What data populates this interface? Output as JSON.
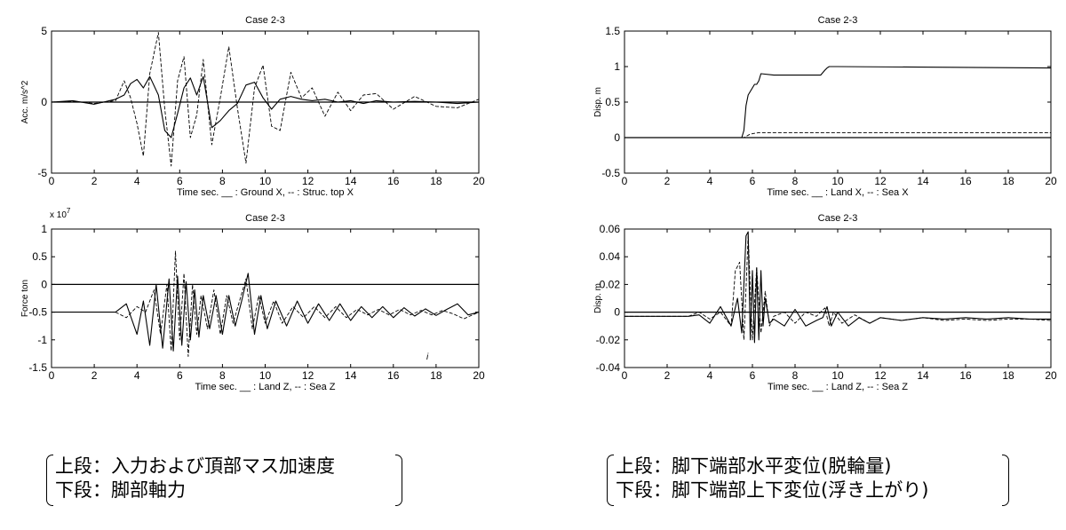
{
  "chart_data": [
    {
      "type": "line",
      "title": "Case  2-3",
      "xlabel": "Time    sec.    __ : Ground  X, -- : Struc. top  X",
      "ylabel": "Acc.   m/s^2",
      "xlim": [
        0,
        20
      ],
      "ylim": [
        -5,
        5
      ],
      "xticks": [
        "0",
        "2",
        "4",
        "6",
        "8",
        "10",
        "12",
        "14",
        "16",
        "18",
        "20"
      ],
      "yticks": [
        "5",
        "0",
        "-5"
      ],
      "ytick_values": [
        5,
        0,
        -5
      ],
      "exponent_label": "",
      "zero_line": true,
      "series": [
        {
          "style": "solid",
          "x": [
            0,
            1,
            2,
            3,
            3.4,
            3.7,
            4.0,
            4.3,
            4.6,
            5.0,
            5.3,
            5.6,
            5.9,
            6.2,
            6.5,
            6.8,
            7.1,
            7.5,
            7.9,
            8.3,
            8.7,
            9.1,
            9.5,
            9.9,
            10.3,
            10.7,
            11.2,
            11.7,
            12.2,
            12.8,
            13.4,
            14,
            14.6,
            15.2,
            16,
            17,
            18,
            19,
            20
          ],
          "y": [
            0,
            0.1,
            -0.15,
            0.2,
            0.5,
            1.3,
            1.6,
            1.0,
            1.8,
            0.5,
            -2.0,
            -2.5,
            -0.8,
            1.0,
            1.7,
            0.5,
            1.8,
            -1.8,
            -1.3,
            -0.6,
            -0.1,
            1.2,
            1.4,
            0.3,
            -0.5,
            0.2,
            0.4,
            0.2,
            0.1,
            0.2,
            0,
            0.1,
            -0.1,
            0.1,
            0,
            0.05,
            0,
            -0.1,
            0
          ]
        },
        {
          "style": "dashed",
          "x": [
            0,
            1,
            2,
            3,
            3.4,
            3.7,
            4.0,
            4.3,
            4.6,
            5.0,
            5.3,
            5.6,
            5.9,
            6.2,
            6.5,
            6.8,
            7.1,
            7.5,
            7.9,
            8.3,
            8.7,
            9.1,
            9.5,
            9.9,
            10.3,
            10.7,
            11.2,
            11.7,
            12.2,
            12.8,
            13.4,
            14,
            14.6,
            15.2,
            16,
            17,
            18,
            19,
            20
          ],
          "y": [
            0,
            0.05,
            -0.1,
            0.1,
            1.5,
            0.3,
            -1.5,
            -3.8,
            2.0,
            4.9,
            -0.5,
            -4.5,
            1.5,
            3.2,
            -2.5,
            -0.9,
            3.0,
            -3.0,
            0.3,
            3.9,
            -0.4,
            -4.3,
            1.0,
            2.6,
            -1.7,
            -2.0,
            2.1,
            0.3,
            1.0,
            -1.0,
            0.7,
            -0.6,
            0.5,
            0.6,
            -0.5,
            0.4,
            -0.3,
            -0.4,
            0.2
          ]
        }
      ]
    },
    {
      "type": "line",
      "title": "Case  2-3",
      "xlabel": "Time    sec.    __ : Land  X, -- : Sea  X",
      "ylabel": "Disp.   m",
      "xlim": [
        0,
        20
      ],
      "ylim": [
        -0.5,
        1.5
      ],
      "xticks": [
        "0",
        "2",
        "4",
        "6",
        "8",
        "10",
        "12",
        "14",
        "16",
        "18",
        "20"
      ],
      "yticks": [
        "1.5",
        "1",
        "0.5",
        "0",
        "-0.5"
      ],
      "ytick_values": [
        1.5,
        1,
        0.5,
        0,
        -0.5
      ],
      "exponent_label": "",
      "zero_line": true,
      "series": [
        {
          "style": "solid",
          "x": [
            0,
            5.5,
            5.6,
            5.7,
            5.8,
            5.9,
            6.0,
            6.1,
            6.2,
            6.3,
            6.4,
            7.0,
            9.2,
            9.4,
            9.5,
            9.6,
            10,
            20
          ],
          "y": [
            0,
            0,
            0.1,
            0.45,
            0.6,
            0.65,
            0.7,
            0.75,
            0.75,
            0.8,
            0.9,
            0.88,
            0.88,
            0.95,
            0.98,
            1.0,
            1.0,
            0.98
          ]
        },
        {
          "style": "dashed",
          "x": [
            0,
            5.6,
            5.9,
            6.3,
            20
          ],
          "y": [
            0,
            0,
            0.05,
            0.07,
            0.07
          ]
        }
      ]
    },
    {
      "type": "line",
      "title": "Case  2-3",
      "xlabel": "Time    sec.    __ : Land  Z, -- : Sea  Z",
      "ylabel": "Force ton",
      "xlim": [
        0,
        20
      ],
      "ylim": [
        -1.5,
        1
      ],
      "xticks": [
        "0",
        "2",
        "4",
        "6",
        "8",
        "10",
        "12",
        "14",
        "16",
        "18",
        "20"
      ],
      "yticks": [
        "1",
        "0.5",
        "0",
        "-0.5",
        "-1",
        "-1.5"
      ],
      "ytick_values": [
        1,
        0.5,
        0,
        -0.5,
        -1,
        -1.5
      ],
      "exponent_label": "x 10^7",
      "zero_line": true,
      "series": [
        {
          "style": "solid",
          "x": [
            0,
            3,
            3.5,
            4.0,
            4.3,
            4.6,
            4.9,
            5.2,
            5.5,
            5.7,
            5.9,
            6.1,
            6.3,
            6.5,
            6.7,
            6.9,
            7.1,
            7.4,
            7.7,
            8.0,
            8.3,
            8.6,
            8.9,
            9.2,
            9.5,
            9.8,
            10.1,
            10.5,
            11,
            11.5,
            12,
            12.5,
            13,
            13.5,
            14,
            14.5,
            15,
            15.5,
            16,
            16.5,
            17,
            17.5,
            18,
            18.5,
            19,
            19.5,
            20
          ],
          "y": [
            -0.5,
            -0.5,
            -0.35,
            -0.9,
            -0.3,
            -1.1,
            0.0,
            -1.15,
            0.1,
            -1.2,
            0.15,
            -1.1,
            0.05,
            -1.0,
            -0.1,
            -0.95,
            -0.2,
            -0.8,
            -0.2,
            -0.9,
            -0.2,
            -0.75,
            -0.3,
            0.2,
            -0.9,
            -0.2,
            -0.8,
            -0.3,
            -0.75,
            -0.3,
            -0.7,
            -0.35,
            -0.65,
            -0.35,
            -0.65,
            -0.4,
            -0.6,
            -0.4,
            -0.6,
            -0.42,
            -0.57,
            -0.44,
            -0.56,
            -0.45,
            -0.35,
            -0.55,
            -0.5
          ]
        },
        {
          "style": "dashed",
          "x": [
            0,
            3,
            3.5,
            4.0,
            4.4,
            4.8,
            5.1,
            5.4,
            5.6,
            5.8,
            6.0,
            6.2,
            6.4,
            6.6,
            6.8,
            7.0,
            7.3,
            7.6,
            7.9,
            8.2,
            8.5,
            8.8,
            9.1,
            9.4,
            9.7,
            10.0,
            10.4,
            10.8,
            11.3,
            11.8,
            12.3,
            12.8,
            13.3,
            13.8,
            14.3,
            14.8,
            15.3,
            15.8,
            16.3,
            16.8,
            17.3,
            17.8,
            18.3,
            18.8,
            19.3,
            20
          ],
          "y": [
            -0.5,
            -0.5,
            -0.6,
            -0.4,
            -0.5,
            -0.1,
            -0.9,
            0.0,
            -1.2,
            0.6,
            -1.0,
            0.2,
            -1.3,
            0.0,
            -0.9,
            -0.2,
            -0.8,
            -0.1,
            -0.9,
            -0.2,
            -0.7,
            -0.3,
            0.1,
            -0.8,
            -0.2,
            -0.7,
            -0.3,
            -0.7,
            -0.4,
            -0.6,
            -0.4,
            -0.6,
            -0.4,
            -0.6,
            -0.45,
            -0.55,
            -0.45,
            -0.55,
            -0.45,
            -0.55,
            -0.47,
            -0.55,
            -0.47,
            -0.53,
            -0.62,
            -0.5
          ]
        }
      ]
    },
    {
      "type": "line",
      "title": "Case  2-3",
      "xlabel": "Time    sec.    __ : Land  Z, -- : Sea  Z",
      "ylabel": "Disp.  m",
      "xlim": [
        0,
        20
      ],
      "ylim": [
        -0.04,
        0.06
      ],
      "xticks": [
        "0",
        "2",
        "4",
        "6",
        "8",
        "10",
        "12",
        "14",
        "16",
        "18",
        "20"
      ],
      "yticks": [
        "0.06",
        "0.04",
        "0.02",
        "0",
        "-0.02",
        "-0.04"
      ],
      "ytick_values": [
        0.06,
        0.04,
        0.02,
        0,
        -0.02,
        -0.04
      ],
      "exponent_label": "",
      "zero_line": true,
      "series": [
        {
          "style": "solid",
          "x": [
            0,
            3,
            3.5,
            4.0,
            4.5,
            5.0,
            5.3,
            5.5,
            5.7,
            5.8,
            5.9,
            6.0,
            6.1,
            6.2,
            6.3,
            6.4,
            6.5,
            6.6,
            6.8,
            7.0,
            7.5,
            8,
            8.5,
            9,
            9.3,
            9.5,
            9.7,
            10,
            10.5,
            11,
            11.5,
            12,
            13,
            14,
            15,
            16,
            17,
            18,
            19,
            20
          ],
          "y": [
            -0.003,
            -0.003,
            -0.002,
            -0.008,
            0.004,
            -0.01,
            0.01,
            -0.015,
            0.055,
            0.058,
            -0.02,
            0.03,
            -0.022,
            0.032,
            -0.02,
            0.03,
            -0.01,
            0.01,
            -0.008,
            -0.005,
            -0.01,
            0.002,
            -0.01,
            -0.006,
            -0.004,
            0.004,
            -0.01,
            0.0,
            -0.01,
            -0.004,
            -0.008,
            -0.004,
            -0.006,
            -0.004,
            -0.005,
            -0.004,
            -0.005,
            -0.004,
            -0.005,
            -0.005
          ]
        },
        {
          "style": "dashed",
          "x": [
            0,
            3,
            3.5,
            4.0,
            4.5,
            5.0,
            5.2,
            5.4,
            5.6,
            5.8,
            6.0,
            6.2,
            6.4,
            6.6,
            6.8,
            7.0,
            7.5,
            8,
            8.5,
            9,
            9.4,
            9.6,
            9.8,
            10.2,
            10.8,
            11.5,
            12,
            13,
            14,
            15,
            16,
            17,
            18,
            19,
            20
          ],
          "y": [
            -0.003,
            -0.003,
            0.0,
            -0.005,
            0.0,
            -0.01,
            0.03,
            0.036,
            -0.02,
            0.055,
            -0.02,
            0.032,
            -0.015,
            0.015,
            -0.01,
            -0.003,
            0.0,
            -0.008,
            0.0,
            -0.003,
            0.003,
            -0.01,
            0.0,
            -0.008,
            -0.002,
            -0.008,
            -0.004,
            -0.006,
            -0.004,
            -0.006,
            -0.005,
            -0.006,
            -0.005,
            -0.005,
            -0.006
          ]
        }
      ]
    }
  ],
  "captions": {
    "left": [
      "上段：入力および頂部マス加速度",
      "下段：脚部軸力"
    ],
    "right": [
      "上段：脚下端部水平変位(脱輪量)",
      "下段：脚下端部上下変位(浮き上がり)"
    ]
  },
  "stray_mark": "i"
}
